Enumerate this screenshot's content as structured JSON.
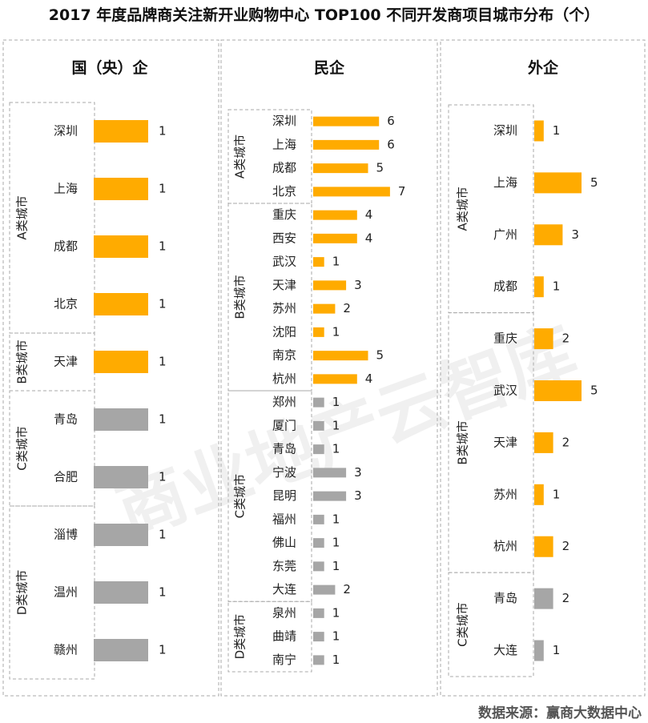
{
  "title": "2017 年度品牌商关注新开业购物中心 TOP100 不同开发商项目城市分布（个）",
  "source": "数据来源：赢商大数据中心",
  "watermark": "商业地产云智库",
  "colors": {
    "highlight": "#FFAB00",
    "normal": "#A6A6A6",
    "border": "#AAAAAA"
  },
  "chart_data": [
    {
      "type": "bar",
      "title": "国（央）企",
      "groups": [
        {
          "label": "A类城市",
          "highlight": true,
          "categories": [
            "深圳",
            "上海",
            "成都",
            "北京"
          ],
          "values": [
            1,
            1,
            1,
            1
          ]
        },
        {
          "label": "B类城市",
          "highlight": true,
          "categories": [
            "天津"
          ],
          "values": [
            1
          ]
        },
        {
          "label": "C类城市",
          "highlight": false,
          "categories": [
            "青岛",
            "合肥"
          ],
          "values": [
            1,
            1
          ]
        },
        {
          "label": "D类城市",
          "highlight": false,
          "categories": [
            "淄博",
            "温州",
            "赣州"
          ],
          "values": [
            1,
            1,
            1
          ]
        }
      ]
    },
    {
      "type": "bar",
      "title": "民企",
      "groups": [
        {
          "label": "A类城市",
          "highlight": true,
          "categories": [
            "深圳",
            "上海",
            "成都",
            "北京"
          ],
          "values": [
            6,
            6,
            5,
            7
          ]
        },
        {
          "label": "B类城市",
          "highlight": true,
          "categories": [
            "重庆",
            "西安",
            "武汉",
            "天津",
            "苏州",
            "沈阳",
            "南京",
            "杭州"
          ],
          "values": [
            4,
            4,
            1,
            3,
            2,
            1,
            5,
            4
          ]
        },
        {
          "label": "C类城市",
          "highlight": false,
          "categories": [
            "郑州",
            "厦门",
            "青岛",
            "宁波",
            "昆明",
            "福州",
            "佛山",
            "东莞",
            "大连"
          ],
          "values": [
            1,
            1,
            1,
            3,
            3,
            1,
            1,
            1,
            2
          ]
        },
        {
          "label": "D类城市",
          "highlight": false,
          "categories": [
            "泉州",
            "曲靖",
            "南宁"
          ],
          "values": [
            1,
            1,
            1
          ]
        }
      ]
    },
    {
      "type": "bar",
      "title": "外企",
      "groups": [
        {
          "label": "A类城市",
          "highlight": true,
          "categories": [
            "深圳",
            "上海",
            "广州",
            "成都"
          ],
          "values": [
            1,
            5,
            3,
            1
          ]
        },
        {
          "label": "B类城市",
          "highlight": true,
          "categories": [
            "重庆",
            "武汉",
            "天津",
            "苏州",
            "杭州"
          ],
          "values": [
            2,
            5,
            2,
            1,
            2
          ]
        },
        {
          "label": "C类城市",
          "highlight": false,
          "categories": [
            "青岛",
            "大连"
          ],
          "values": [
            2,
            1
          ]
        }
      ]
    }
  ]
}
